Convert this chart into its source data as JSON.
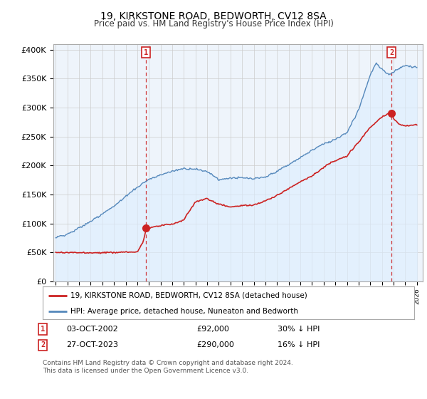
{
  "title": "19, KIRKSTONE ROAD, BEDWORTH, CV12 8SA",
  "subtitle": "Price paid vs. HM Land Registry's House Price Index (HPI)",
  "ylabel_ticks": [
    "£0",
    "£50K",
    "£100K",
    "£150K",
    "£200K",
    "£250K",
    "£300K",
    "£350K",
    "£400K"
  ],
  "ytick_values": [
    0,
    50000,
    100000,
    150000,
    200000,
    250000,
    300000,
    350000,
    400000
  ],
  "ylim": [
    0,
    410000
  ],
  "xlim_start": 1994.8,
  "xlim_end": 2026.5,
  "hpi_color": "#5588bb",
  "hpi_fill_color": "#ddeeff",
  "price_color": "#cc2222",
  "dashed_line_color": "#cc2222",
  "marker1_x": 2002.75,
  "marker1_y": 92000,
  "marker2_x": 2023.82,
  "marker2_y": 290000,
  "annotation1_date": "03-OCT-2002",
  "annotation1_price": "£92,000",
  "annotation1_hpi": "30% ↓ HPI",
  "annotation2_date": "27-OCT-2023",
  "annotation2_price": "£290,000",
  "annotation2_hpi": "16% ↓ HPI",
  "legend_label_price": "19, KIRKSTONE ROAD, BEDWORTH, CV12 8SA (detached house)",
  "legend_label_hpi": "HPI: Average price, detached house, Nuneaton and Bedworth",
  "footer": "Contains HM Land Registry data © Crown copyright and database right 2024.\nThis data is licensed under the Open Government Licence v3.0.",
  "background_color": "#ffffff",
  "grid_color": "#cccccc"
}
